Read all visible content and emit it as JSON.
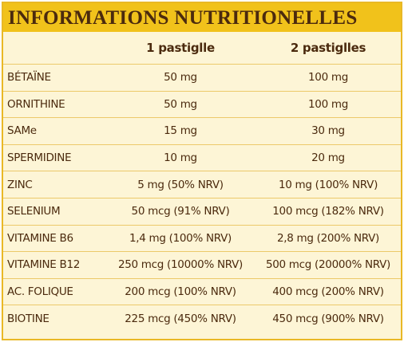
{
  "title": "INFORMATIONS NUTRITIONELLES",
  "table": {
    "header": [
      "1 pastiglle",
      "2 pastiglles"
    ],
    "rows": [
      [
        "BÉTAÏNE",
        "50 mg",
        "100 mg"
      ],
      [
        "ORNITHINE",
        "50 mg",
        "100 mg"
      ],
      [
        "SAMe",
        "15 mg",
        "30 mg"
      ],
      [
        "SPERMIDINE",
        "10 mg",
        "20 mg"
      ],
      [
        "ZINC",
        "5 mg (50% NRV)",
        "10 mg (100% NRV)"
      ],
      [
        "SELENIUM",
        "50 mcg (91% NRV)",
        "100 mcg (182% NRV)"
      ],
      [
        "VITAMINE B6",
        "1,4 mg (100% NRV)",
        "2,8 mg (200% NRV)"
      ],
      [
        "VITAMINE B12",
        "250 mcg (10000% NRV)",
        "500 mcg (20000% NRV)"
      ],
      [
        "AC. FOLIQUE",
        "200 mcg (100% NRV)",
        "400 mcg (200% NRV)"
      ],
      [
        "BIOTINE",
        "225 mcg (450% NRV)",
        "450 mcg (900% NRV)"
      ]
    ]
  }
}
